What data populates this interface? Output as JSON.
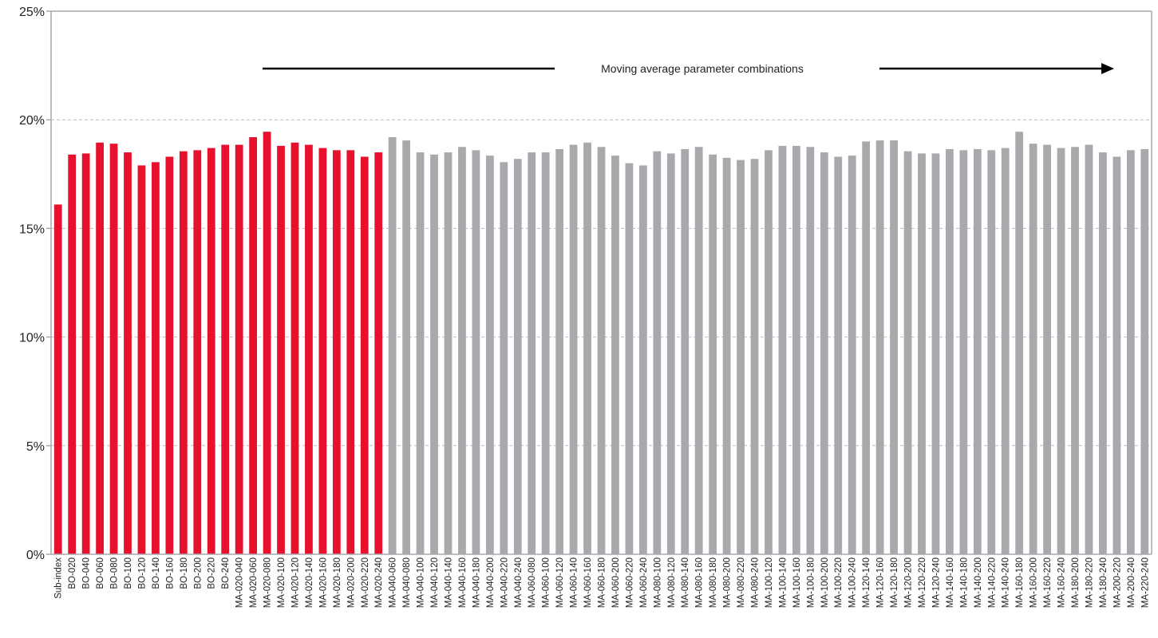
{
  "chart_data": {
    "type": "bar",
    "categories": [
      "Sub-index",
      "BO-020",
      "BO-040",
      "BO-060",
      "BO-080",
      "BO-100",
      "BO-120",
      "BO-140",
      "BO-160",
      "BO-180",
      "BO-200",
      "BO-220",
      "BO-240",
      "MA-020-040",
      "MA-020-060",
      "MA-020-080",
      "MA-020-100",
      "MA-020-120",
      "MA-020-140",
      "MA-020-160",
      "MA-020-180",
      "MA-020-200",
      "MA-020-220",
      "MA-020-240",
      "MA-040-060",
      "MA-040-080",
      "MA-040-100",
      "MA-040-120",
      "MA-040-140",
      "MA-040-160",
      "MA-040-180",
      "MA-040-200",
      "MA-040-220",
      "MA-040-240",
      "MA-060-080",
      "MA-060-100",
      "MA-060-120",
      "MA-060-140",
      "MA-060-160",
      "MA-060-180",
      "MA-060-200",
      "MA-060-220",
      "MA-060-240",
      "MA-080-100",
      "MA-080-120",
      "MA-080-140",
      "MA-080-160",
      "MA-080-180",
      "MA-080-200",
      "MA-080-220",
      "MA-080-240",
      "MA-100-120",
      "MA-100-140",
      "MA-100-160",
      "MA-100-180",
      "MA-100-200",
      "MA-100-220",
      "MA-100-240",
      "MA-120-140",
      "MA-120-160",
      "MA-120-180",
      "MA-120-200",
      "MA-120-220",
      "MA-120-240",
      "MA-140-160",
      "MA-140-180",
      "MA-140-200",
      "MA-140-220",
      "MA-140-240",
      "MA-160-180",
      "MA-160-200",
      "MA-160-220",
      "MA-160-240",
      "MA-180-200",
      "MA-180-220",
      "MA-180-240",
      "MA-200-220",
      "MA-200-240",
      "MA-220-240"
    ],
    "values": [
      16.1,
      18.4,
      18.45,
      18.95,
      18.9,
      18.5,
      17.9,
      18.05,
      18.3,
      18.55,
      18.6,
      18.7,
      18.85,
      18.85,
      19.2,
      19.45,
      18.8,
      18.95,
      18.85,
      18.7,
      18.6,
      18.6,
      18.3,
      18.5,
      19.2,
      19.05,
      18.5,
      18.4,
      18.5,
      18.75,
      18.6,
      18.35,
      18.05,
      18.2,
      18.5,
      18.5,
      18.65,
      18.85,
      18.95,
      18.75,
      18.35,
      18.0,
      17.9,
      18.55,
      18.45,
      18.65,
      18.75,
      18.4,
      18.25,
      18.15,
      18.2,
      18.6,
      18.8,
      18.8,
      18.75,
      18.5,
      18.3,
      18.35,
      19.0,
      19.05,
      19.05,
      18.55,
      18.45,
      18.45,
      18.65,
      18.6,
      18.65,
      18.6,
      18.7,
      19.45,
      18.9,
      18.85,
      18.7,
      18.75,
      18.85,
      18.5,
      18.3,
      18.6,
      18.65
    ],
    "highlighted_range": [
      0,
      23
    ],
    "ylim": [
      0,
      25
    ],
    "yticks": [
      "0%",
      "5%",
      "10%",
      "15%",
      "20%",
      "25%"
    ],
    "gridlines": [
      5,
      10,
      15,
      20
    ],
    "annotation": "Moving average parameter combinations",
    "xlabel": "",
    "ylabel": "",
    "colors": {
      "highlight": "#e8112d",
      "default": "#a7a9ac",
      "axis": "#a7a9ac",
      "grid": "#bcbec0",
      "arrow": "#000000"
    }
  }
}
